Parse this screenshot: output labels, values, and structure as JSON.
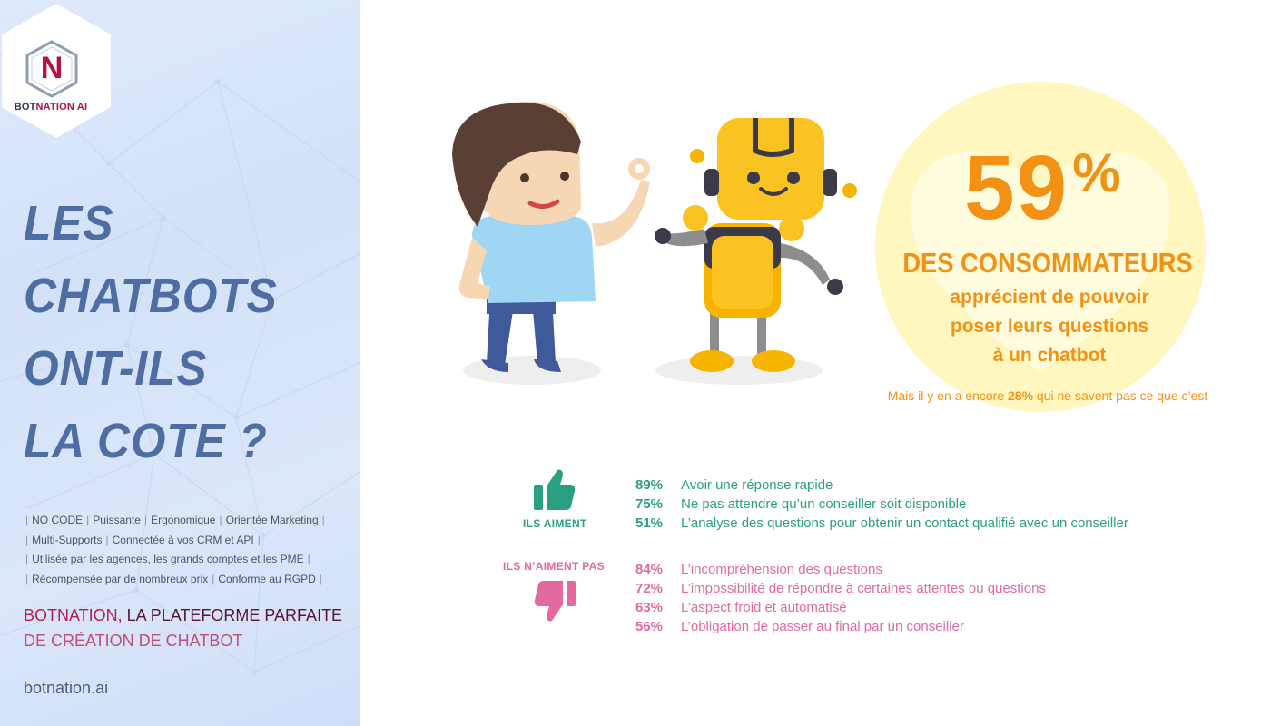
{
  "brand": {
    "logo_letter": "N",
    "name_part1": "BOT",
    "name_part2": "NATION AI"
  },
  "headline": [
    "LES",
    "CHATBOTS",
    "ONT-ILS",
    "LA COTE ?"
  ],
  "features": [
    [
      "NO CODE",
      "Puissante",
      "Ergonomique",
      "Orientée Marketing"
    ],
    [
      "Multi-Supports",
      "Connectée à vos CRM et API"
    ],
    [
      "Utilisée par les agences, les grands comptes et les PME"
    ],
    [
      "Récompensée par de nombreux prix",
      "Conforme au RGPD"
    ]
  ],
  "tagline": {
    "part1": "BOTNATION, ",
    "part2": "LA PLATEFORME PARFAITE",
    "line2": "DE CRÉATION DE CHATBOT"
  },
  "website": "botnation.ai",
  "stat": {
    "number": "59",
    "sign": "%",
    "headline": "DES CONSOMMATEURS",
    "lines": [
      "apprécient de pouvoir",
      "poser leurs questions",
      "à un chatbot"
    ],
    "note_before": "Mais il y en a encore ",
    "note_pct": "28%",
    "note_after": " qui ne savent pas ce que c’est"
  },
  "likes": {
    "label": "ILS AIMENT",
    "items": [
      {
        "pct": "89%",
        "text": "Avoir une réponse rapide"
      },
      {
        "pct": "75%",
        "text": "Ne pas attendre qu’un conseiller soit disponible"
      },
      {
        "pct": "51%",
        "text": "L’analyse des questions pour obtenir un contact qualifié avec un conseiller"
      }
    ]
  },
  "dislikes": {
    "label": "ILS N’AIMENT PAS",
    "items": [
      {
        "pct": "84%",
        "text": "L’incompréhension des questions"
      },
      {
        "pct": "72%",
        "text": "L’impossibilité de répondre à certaines attentes ou questions"
      },
      {
        "pct": "63%",
        "text": "L’aspect froid et automatisé"
      },
      {
        "pct": "56%",
        "text": "L’obligation de passer au final par un conseiller"
      }
    ]
  },
  "colors": {
    "headline": "#4e6da3",
    "orange": "#f39114",
    "green": "#2a9f81",
    "pink": "#e26aa1",
    "brand_red": "#b4123c"
  },
  "icons": {
    "like": "thumbs-up-icon",
    "dislike": "thumbs-down-icon",
    "illustration": "person-and-robot-illustration"
  }
}
